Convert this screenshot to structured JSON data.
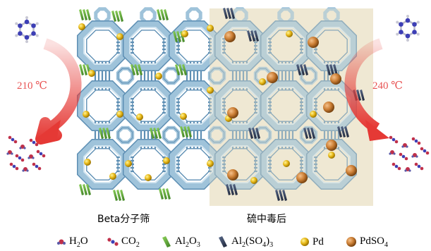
{
  "labels": {
    "left_temp": "210 ℃",
    "right_temp": "240 ℃",
    "left_caption": "Beta分子筛",
    "right_caption": "硫中毒后"
  },
  "legend": [
    {
      "key": "h2o",
      "icon": "water-molecule-icon",
      "base": "H",
      "sub": "2",
      "tail": "O"
    },
    {
      "key": "co2",
      "icon": "co2-molecule-icon",
      "base": "CO",
      "sub": "2",
      "tail": ""
    },
    {
      "key": "al2o3",
      "icon": "al2o3-crystal-icon",
      "base": "Al",
      "sub": "2",
      "tail": "O",
      "sub2": "3",
      "color": "#4e9a2e"
    },
    {
      "key": "al2so43",
      "icon": "al2so43-crystal-icon",
      "base": "Al",
      "sub": "2",
      "tail": "(SO",
      "sub2": "4",
      "tail2": ")",
      "sub3": "3",
      "color": "#2b3550"
    },
    {
      "key": "pd",
      "icon": "pd-particle-icon",
      "base": "Pd",
      "color": "#e0b010"
    },
    {
      "key": "pdso4",
      "icon": "pdso4-particle-icon",
      "base": "PdSO",
      "sub": "4",
      "color": "#c87a32"
    }
  ],
  "colors": {
    "framework": "#9fc3da",
    "framework_dark": "#5e8fb4",
    "poisoned_bg": "#f0ead8",
    "arrow": "#e53935",
    "benzene": "#3d3fb5"
  }
}
